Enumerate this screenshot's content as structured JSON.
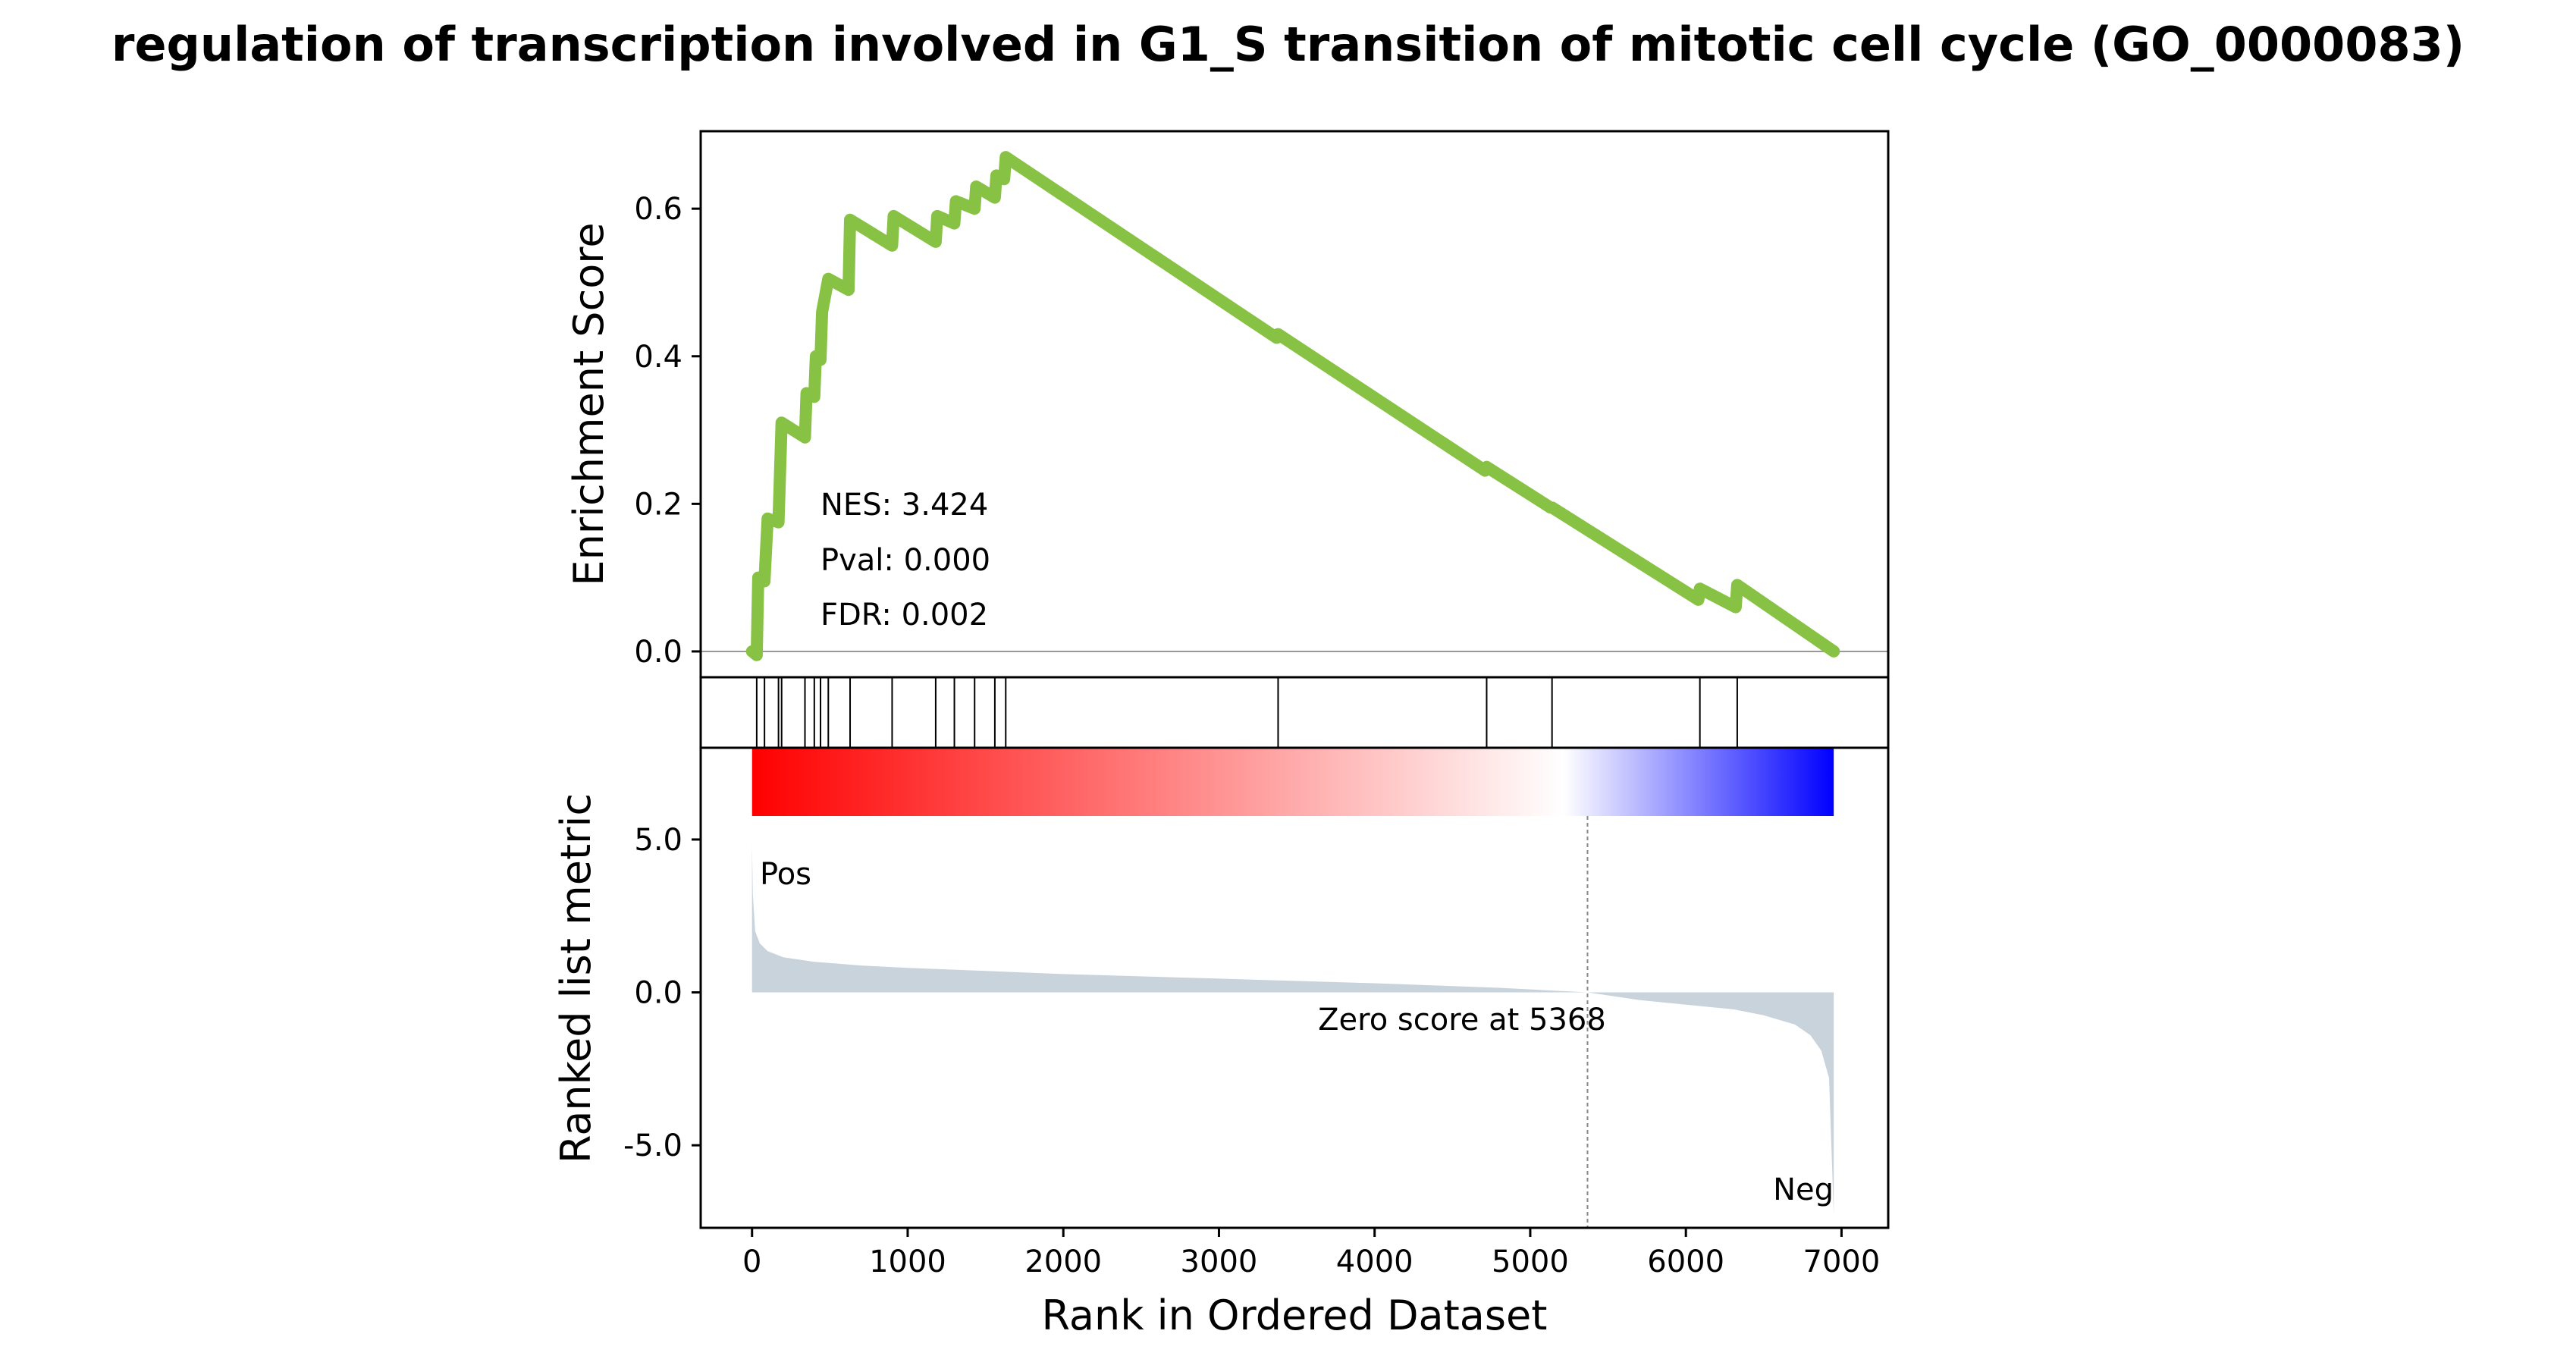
{
  "title": "regulation of transcription involved in G1_S transition of mitotic cell cycle (GO_0000083)",
  "chart_data": {
    "type": "line",
    "title": "regulation of transcription involved in G1_S transition of mitotic cell cycle (GO_0000083)",
    "xlabel": "Rank in Ordered Dataset",
    "xlim": [
      -330,
      7300
    ],
    "x_ticks": [
      0,
      1000,
      2000,
      3000,
      4000,
      5000,
      6000,
      7000
    ],
    "enrichment_panel": {
      "ylabel": "Enrichment Score",
      "ylim": [
        -0.035,
        0.705
      ],
      "y_ticks": [
        0.0,
        0.2,
        0.4,
        0.6
      ],
      "y_tick_labels": [
        "0.0",
        "0.2",
        "0.4",
        "0.6"
      ],
      "line_color": "#88c244",
      "x": [
        0,
        30,
        40,
        80,
        100,
        170,
        190,
        340,
        350,
        400,
        410,
        440,
        450,
        490,
        620,
        630,
        900,
        910,
        1180,
        1190,
        1300,
        1310,
        1430,
        1440,
        1560,
        1570,
        1620,
        1630,
        3370,
        3380,
        4710,
        4720,
        5130,
        5140,
        6080,
        6090,
        6320,
        6330,
        6950
      ],
      "y": [
        0.0,
        -0.005,
        0.1,
        0.095,
        0.18,
        0.175,
        0.31,
        0.29,
        0.35,
        0.345,
        0.4,
        0.395,
        0.46,
        0.505,
        0.49,
        0.585,
        0.55,
        0.59,
        0.555,
        0.59,
        0.58,
        0.61,
        0.6,
        0.63,
        0.615,
        0.645,
        0.64,
        0.67,
        0.425,
        0.43,
        0.245,
        0.25,
        0.195,
        0.195,
        0.07,
        0.085,
        0.06,
        0.09,
        0.0
      ],
      "annotations": [
        "NES: 3.424",
        "Pval: 0.000",
        "FDR: 0.002"
      ]
    },
    "hits_panel": {
      "hit_ranks": [
        30,
        80,
        170,
        190,
        340,
        400,
        440,
        490,
        630,
        900,
        1180,
        1300,
        1430,
        1560,
        1630,
        3380,
        4720,
        5140,
        6090,
        6330
      ]
    },
    "ranked_metric_panel": {
      "ylabel": "Ranked list metric",
      "ylim": [
        -7.7,
        8.0
      ],
      "y_ticks": [
        5.0,
        0.0,
        -5.0
      ],
      "y_tick_labels": [
        "5.0",
        "0.0",
        "-5.0"
      ],
      "fill_color": "#c8d3dc",
      "x": [
        0,
        5,
        20,
        50,
        100,
        200,
        400,
        700,
        1000,
        1500,
        2000,
        3000,
        4000,
        4800,
        5368,
        5700,
        6000,
        6300,
        6500,
        6700,
        6800,
        6870,
        6920,
        6950
      ],
      "y": [
        4.8,
        3.2,
        2.0,
        1.6,
        1.35,
        1.15,
        1.0,
        0.88,
        0.8,
        0.7,
        0.6,
        0.45,
        0.3,
        0.15,
        0.0,
        -0.25,
        -0.4,
        -0.55,
        -0.75,
        -1.05,
        -1.4,
        -1.9,
        -2.8,
        -7.3
      ],
      "colorbar": {
        "from": "#ff0000",
        "mid": "#ffffff",
        "to": "#0000ff"
      },
      "zero_cross_rank": 5368,
      "zero_label": "Zero score at 5368",
      "pos_label": "Pos",
      "neg_label": "Neg",
      "pos_color": "#e60000",
      "neg_color": "#0000dd"
    }
  }
}
